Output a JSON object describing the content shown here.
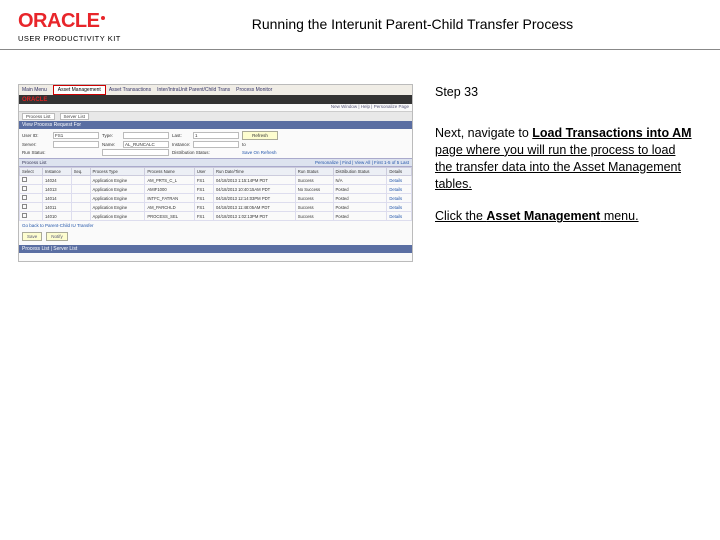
{
  "header": {
    "logo_text": "ORACLE",
    "logo_sub": "USER PRODUCTIVITY KIT",
    "title": "Running the Interunit Parent-Child Transfer Process"
  },
  "instructions": {
    "step_label": "Step 33",
    "para1_prefix": "Next, navigate to ",
    "para1_bold": "Load Transactions into AM",
    "para1_suffix": " page where you will run the process to load the transfer data into the Asset Management tables.",
    "para2_prefix": "Click the ",
    "para2_bold": "Asset Management",
    "para2_suffix": " menu."
  },
  "screenshot": {
    "top_tabs": {
      "t1": "Main Menu",
      "active": "Asset Management",
      "t3": "Asset Transactions",
      "t4": "Inter/IntraUnit Parent/Child Trans",
      "t5": "Process Monitor"
    },
    "brand": "ORACLE",
    "sub_links": "New Window | Help | Personalize Page",
    "bar_tab1": "Process List",
    "bar_tab2": "Server List",
    "section1": "View Process Request For",
    "form": {
      "l_user": "User ID:",
      "v_user": "FS1",
      "l_type": "Type:",
      "v_type": "",
      "l_last": "Last:",
      "v_last": "1",
      "unit": "Days",
      "refresh": "Refresh",
      "l_server": "Server:",
      "l_name": "Name:",
      "v_name": "AL_RUNCALC",
      "l_inst": "Instance:",
      "l_to": "to",
      "l_run": "Run Status:",
      "l_dist": "Distribution Status:",
      "save_link": "Save On Refresh"
    },
    "grid_title": "Process List",
    "grid_meta": "Personalize | Find | View All | First 1-5 of 5 Last",
    "columns": [
      "Select",
      "Instance",
      "Seq.",
      "Process Type",
      "Process Name",
      "User",
      "Run Date/Time",
      "Run Status",
      "Distribution Status",
      "Details"
    ],
    "rows": [
      [
        "",
        "14024",
        "",
        "Application Engine",
        "AM_PRTS_C_L",
        "FS1",
        "04/18/2013 1:15:14PM PDT",
        "Success",
        "N/A",
        "Details"
      ],
      [
        "",
        "14013",
        "",
        "Application Engine",
        "AMIF1000",
        "FS1",
        "04/18/2013 10:40:15AM PDT",
        "No Success",
        "Posted",
        "Details"
      ],
      [
        "",
        "14014",
        "",
        "Application Engine",
        "INTFC_FATRAN",
        "FS1",
        "04/18/2013 12:14:03PM PDT",
        "Success",
        "Posted",
        "Details"
      ],
      [
        "",
        "14011",
        "",
        "Application Engine",
        "AM_PARCHLD",
        "FS1",
        "04/18/2013 11:48:05AM PDT",
        "Success",
        "Posted",
        "Details"
      ],
      [
        "",
        "14010",
        "",
        "Application Engine",
        "PROCESS_SEL",
        "FS1",
        "04/18/2013 1:02:13PM PDT",
        "Success",
        "Posted",
        "Details"
      ]
    ],
    "foot_back": "Go back to Parent-Child IU Transfer",
    "foot_save": "Save",
    "foot_notify": "Notify",
    "foot_tabs": "Process List | Server List"
  }
}
